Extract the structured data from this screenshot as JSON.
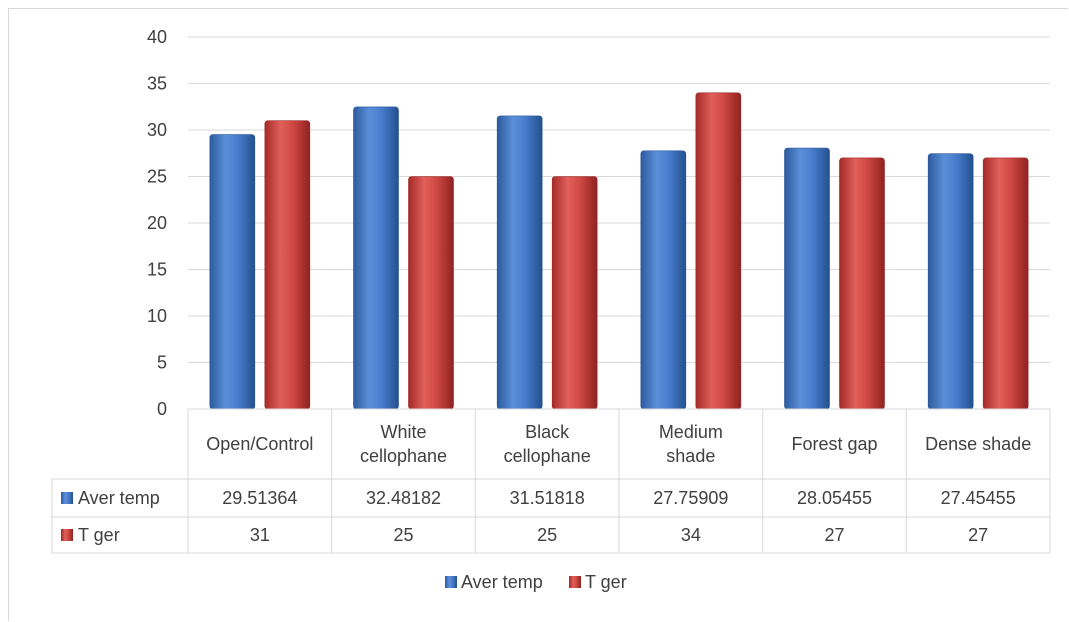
{
  "chart_data": {
    "type": "bar",
    "categories": [
      [
        "Open/Control"
      ],
      [
        "White",
        "cellophane"
      ],
      [
        "Black",
        "cellophane"
      ],
      [
        "Medium",
        "shade"
      ],
      [
        "Forest gap"
      ],
      [
        "Dense shade"
      ]
    ],
    "series": [
      {
        "name": "Aver temp",
        "values": [
          29.51364,
          32.48182,
          31.51818,
          27.75909,
          28.05455,
          27.45455
        ],
        "labels": [
          "29.51364",
          "32.48182",
          "31.51818",
          "27.75909",
          "28.05455",
          "27.45455"
        ],
        "color": "#3f74c4"
      },
      {
        "name": "T ger",
        "values": [
          31,
          25,
          25,
          34,
          27,
          27
        ],
        "labels": [
          "31",
          "25",
          "25",
          "34",
          "27",
          "27"
        ],
        "color": "#c9403c"
      }
    ],
    "ylim": [
      0,
      40
    ],
    "yticks": [
      "0",
      "5",
      "10",
      "15",
      "20",
      "25",
      "30",
      "35",
      "40"
    ],
    "grid": true,
    "data_table": true,
    "legend_position": "bottom"
  }
}
